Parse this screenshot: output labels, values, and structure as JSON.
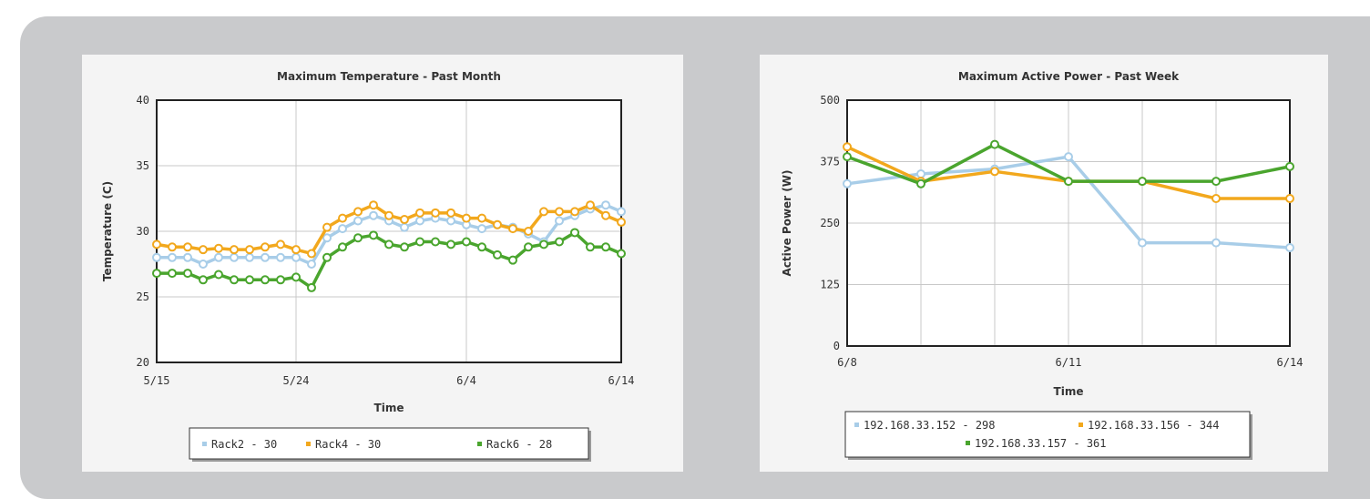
{
  "chart_data": [
    {
      "type": "line",
      "title": "Maximum Temperature - Past Month",
      "xlabel": "Time",
      "ylabel": "Temperature (C)",
      "ylim": [
        20,
        40
      ],
      "yticks": [
        20,
        25,
        30,
        35,
        40
      ],
      "xlim": [
        0,
        30
      ],
      "xticks": [
        {
          "value": 0,
          "label": "5/15"
        },
        {
          "value": 9,
          "label": "5/24"
        },
        {
          "value": 20,
          "label": "6/4"
        },
        {
          "value": 30,
          "label": "6/14"
        }
      ],
      "grid": true,
      "legend": "bottom",
      "x": [
        0,
        1,
        2,
        3,
        4,
        5,
        6,
        7,
        8,
        9,
        10,
        11,
        12,
        13,
        14,
        15,
        16,
        17,
        18,
        19,
        20,
        21,
        22,
        23,
        24,
        25,
        26,
        27,
        28,
        29,
        30
      ],
      "series": [
        {
          "name": "Rack2 - 30",
          "color": "#a8cde8",
          "values": [
            28.0,
            28.0,
            28.0,
            27.5,
            28.0,
            28.0,
            28.0,
            28.0,
            28.0,
            28.0,
            27.5,
            29.5,
            30.2,
            30.8,
            31.2,
            30.8,
            30.3,
            30.8,
            31.0,
            30.8,
            30.5,
            30.2,
            30.5,
            30.3,
            29.8,
            29.2,
            30.8,
            31.2,
            31.7,
            32.0,
            31.5
          ]
        },
        {
          "name": "Rack4 - 30",
          "color": "#f2a81d",
          "values": [
            29.0,
            28.8,
            28.8,
            28.6,
            28.7,
            28.6,
            28.6,
            28.8,
            29.0,
            28.6,
            28.3,
            30.3,
            31.0,
            31.5,
            32.0,
            31.2,
            30.9,
            31.4,
            31.4,
            31.4,
            31.0,
            31.0,
            30.5,
            30.2,
            30.0,
            31.5,
            31.5,
            31.5,
            32.0,
            31.2,
            30.7
          ]
        },
        {
          "name": "Rack6 - 28",
          "color": "#4aa52e",
          "values": [
            26.8,
            26.8,
            26.8,
            26.3,
            26.7,
            26.3,
            26.3,
            26.3,
            26.3,
            26.5,
            25.7,
            28.0,
            28.8,
            29.5,
            29.7,
            29.0,
            28.8,
            29.2,
            29.2,
            29.0,
            29.2,
            28.8,
            28.2,
            27.8,
            28.8,
            29.0,
            29.2,
            29.9,
            28.8,
            28.8,
            28.3
          ]
        }
      ]
    },
    {
      "type": "line",
      "title": "Maximum Active Power - Past Week",
      "xlabel": "Time",
      "ylabel": "Active Power (W)",
      "ylim": [
        0,
        500
      ],
      "yticks": [
        0,
        125,
        250,
        375,
        500
      ],
      "xlim": [
        0,
        6
      ],
      "xticks": [
        {
          "value": 0,
          "label": "6/8"
        },
        {
          "value": 3,
          "label": "6/11"
        },
        {
          "value": 6,
          "label": "6/14"
        }
      ],
      "grid": true,
      "legend": "bottom",
      "x": [
        0,
        1,
        2,
        3,
        4,
        5,
        6
      ],
      "series": [
        {
          "name": "192.168.33.152 - 298",
          "color": "#a8cde8",
          "values": [
            330,
            350,
            360,
            385,
            210,
            210,
            200
          ]
        },
        {
          "name": "192.168.33.156 - 344",
          "color": "#f2a81d",
          "values": [
            405,
            335,
            355,
            335,
            335,
            300,
            300
          ]
        },
        {
          "name": "192.168.33.157 - 361",
          "color": "#4aa52e",
          "values": [
            385,
            330,
            410,
            335,
            335,
            335,
            365
          ]
        }
      ]
    }
  ]
}
